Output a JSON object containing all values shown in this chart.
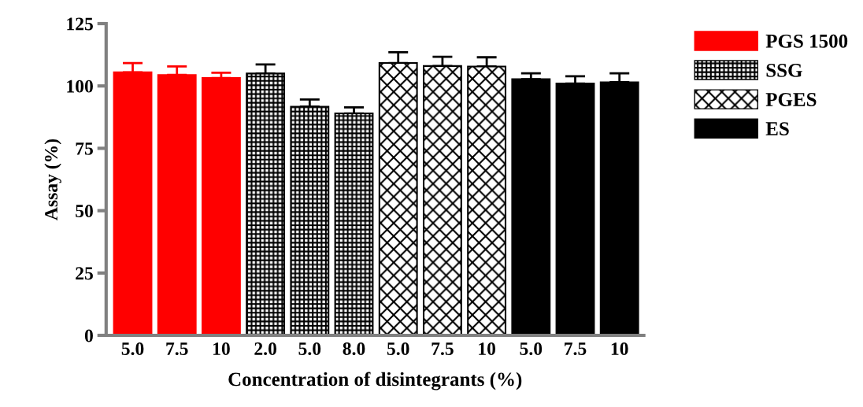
{
  "chart_data": {
    "type": "bar",
    "xlabel": "Concentration of disintegrants (%)",
    "ylabel": "Assay (%)",
    "categories": [
      "5.0",
      "7.5",
      "10",
      "2.0",
      "5.0",
      "8.0",
      "5.0",
      "7.5",
      "10",
      "5.0",
      "7.5",
      "10"
    ],
    "series": [
      {
        "name": "PGS 1500",
        "color": "#ff0000",
        "values": [
          105.5,
          104.4,
          103.2,
          null,
          null,
          null,
          null,
          null,
          null,
          null,
          null,
          null
        ],
        "errors": [
          3.7,
          3.4,
          2.1,
          null,
          null,
          null,
          null,
          null,
          null,
          null,
          null,
          null
        ]
      },
      {
        "name": "SSG",
        "color": "#000000",
        "values": [
          null,
          null,
          null,
          105.0,
          91.7,
          89.0,
          null,
          null,
          null,
          null,
          null,
          null
        ],
        "errors": [
          null,
          null,
          null,
          3.6,
          2.9,
          2.4,
          null,
          null,
          null,
          null,
          null,
          null
        ]
      },
      {
        "name": "PGES",
        "color": "#000000",
        "values": [
          null,
          null,
          null,
          null,
          null,
          null,
          109.2,
          108.0,
          107.8,
          null,
          null,
          null
        ],
        "errors": [
          null,
          null,
          null,
          null,
          null,
          null,
          4.3,
          3.7,
          3.7,
          null,
          null,
          null
        ]
      },
      {
        "name": "ES",
        "color": "#000000",
        "values": [
          null,
          null,
          null,
          null,
          null,
          null,
          null,
          null,
          null,
          102.7,
          101.0,
          101.5
        ],
        "errors": [
          null,
          null,
          null,
          null,
          null,
          null,
          null,
          null,
          null,
          2.4,
          2.9,
          3.6
        ]
      }
    ],
    "ylim": [
      0,
      125
    ],
    "yticks": [
      0,
      25,
      50,
      75,
      100,
      125
    ],
    "grid": false,
    "legend": "right"
  }
}
